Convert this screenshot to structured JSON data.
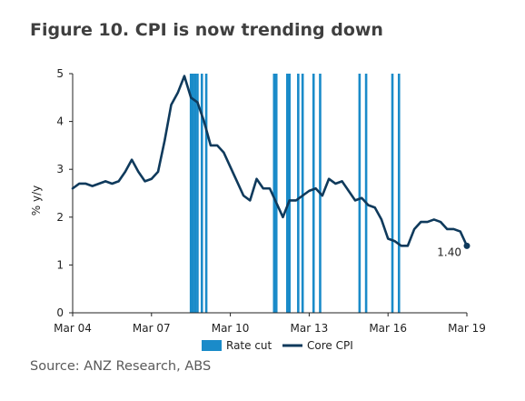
{
  "title": "Figure 10. CPI is now trending down",
  "source": "Source: ANZ Research, ABS",
  "colors": {
    "core_cpi": "#0f3a5c",
    "rate_cut": "#1a8bc9",
    "axis": "#222222"
  },
  "chart_data": {
    "type": "line",
    "title": "Figure 10. CPI is now trending down",
    "ylabel": "% y/y",
    "xlabel": "",
    "ylim": [
      0,
      5
    ],
    "xlim": [
      "2004-03",
      "2019-03"
    ],
    "yticks": [
      "0",
      "1",
      "2",
      "3",
      "4",
      "5"
    ],
    "xticks": [
      {
        "label": "Mar 04",
        "x": "2004-03"
      },
      {
        "label": "Mar 07",
        "x": "2007-03"
      },
      {
        "label": "Mar 10",
        "x": "2010-03"
      },
      {
        "label": "Mar 13",
        "x": "2013-03"
      },
      {
        "label": "Mar 16",
        "x": "2016-03"
      },
      {
        "label": "Mar 19",
        "x": "2019-03"
      }
    ],
    "legend": {
      "position": "bottom",
      "items": [
        {
          "name": "Rate cut",
          "kind": "bar"
        },
        {
          "name": "Core CPI",
          "kind": "line"
        }
      ]
    },
    "grid": false,
    "series": [
      {
        "name": "Core CPI",
        "type": "line",
        "x": [
          "2004-03",
          "2004-06",
          "2004-09",
          "2004-12",
          "2005-03",
          "2005-06",
          "2005-09",
          "2005-12",
          "2006-03",
          "2006-06",
          "2006-09",
          "2006-12",
          "2007-03",
          "2007-06",
          "2007-09",
          "2007-12",
          "2008-03",
          "2008-06",
          "2008-09",
          "2008-12",
          "2009-03",
          "2009-06",
          "2009-09",
          "2009-12",
          "2010-03",
          "2010-06",
          "2010-09",
          "2010-12",
          "2011-03",
          "2011-06",
          "2011-09",
          "2011-12",
          "2012-03",
          "2012-06",
          "2012-09",
          "2012-12",
          "2013-03",
          "2013-06",
          "2013-09",
          "2013-12",
          "2014-03",
          "2014-06",
          "2014-09",
          "2014-12",
          "2015-03",
          "2015-06",
          "2015-09",
          "2015-12",
          "2016-03",
          "2016-06",
          "2016-09",
          "2016-12",
          "2017-03",
          "2017-06",
          "2017-09",
          "2017-12",
          "2018-03",
          "2018-06",
          "2018-09",
          "2018-12",
          "2019-03"
        ],
        "values": [
          2.6,
          2.7,
          2.7,
          2.65,
          2.7,
          2.75,
          2.7,
          2.75,
          2.95,
          3.2,
          2.95,
          2.75,
          2.8,
          2.95,
          3.6,
          4.35,
          4.6,
          4.95,
          4.5,
          4.4,
          4.0,
          3.5,
          3.5,
          3.35,
          3.05,
          2.75,
          2.45,
          2.35,
          2.8,
          2.6,
          2.6,
          2.3,
          2.0,
          2.35,
          2.35,
          2.45,
          2.55,
          2.6,
          2.45,
          2.8,
          2.7,
          2.75,
          2.55,
          2.35,
          2.4,
          2.25,
          2.2,
          1.95,
          1.55,
          1.5,
          1.4,
          1.4,
          1.75,
          1.9,
          1.9,
          1.95,
          1.9,
          1.75,
          1.75,
          1.7,
          1.4
        ]
      },
      {
        "name": "Rate cut",
        "type": "bar",
        "x": [
          "2008-09",
          "2008-10",
          "2008-11",
          "2008-12",
          "2009-02",
          "2009-04",
          "2011-11",
          "2011-12",
          "2012-05",
          "2012-06",
          "2012-10",
          "2012-12",
          "2013-05",
          "2013-08",
          "2015-02",
          "2015-05",
          "2016-05",
          "2016-08"
        ],
        "values": [
          5,
          5,
          5,
          5,
          5,
          5,
          5,
          5,
          5,
          5,
          5,
          5,
          5,
          5,
          5,
          5,
          5,
          5
        ]
      }
    ],
    "annotations": [
      {
        "text": "1.40",
        "x": "2019-03",
        "y": 1.4
      }
    ]
  }
}
